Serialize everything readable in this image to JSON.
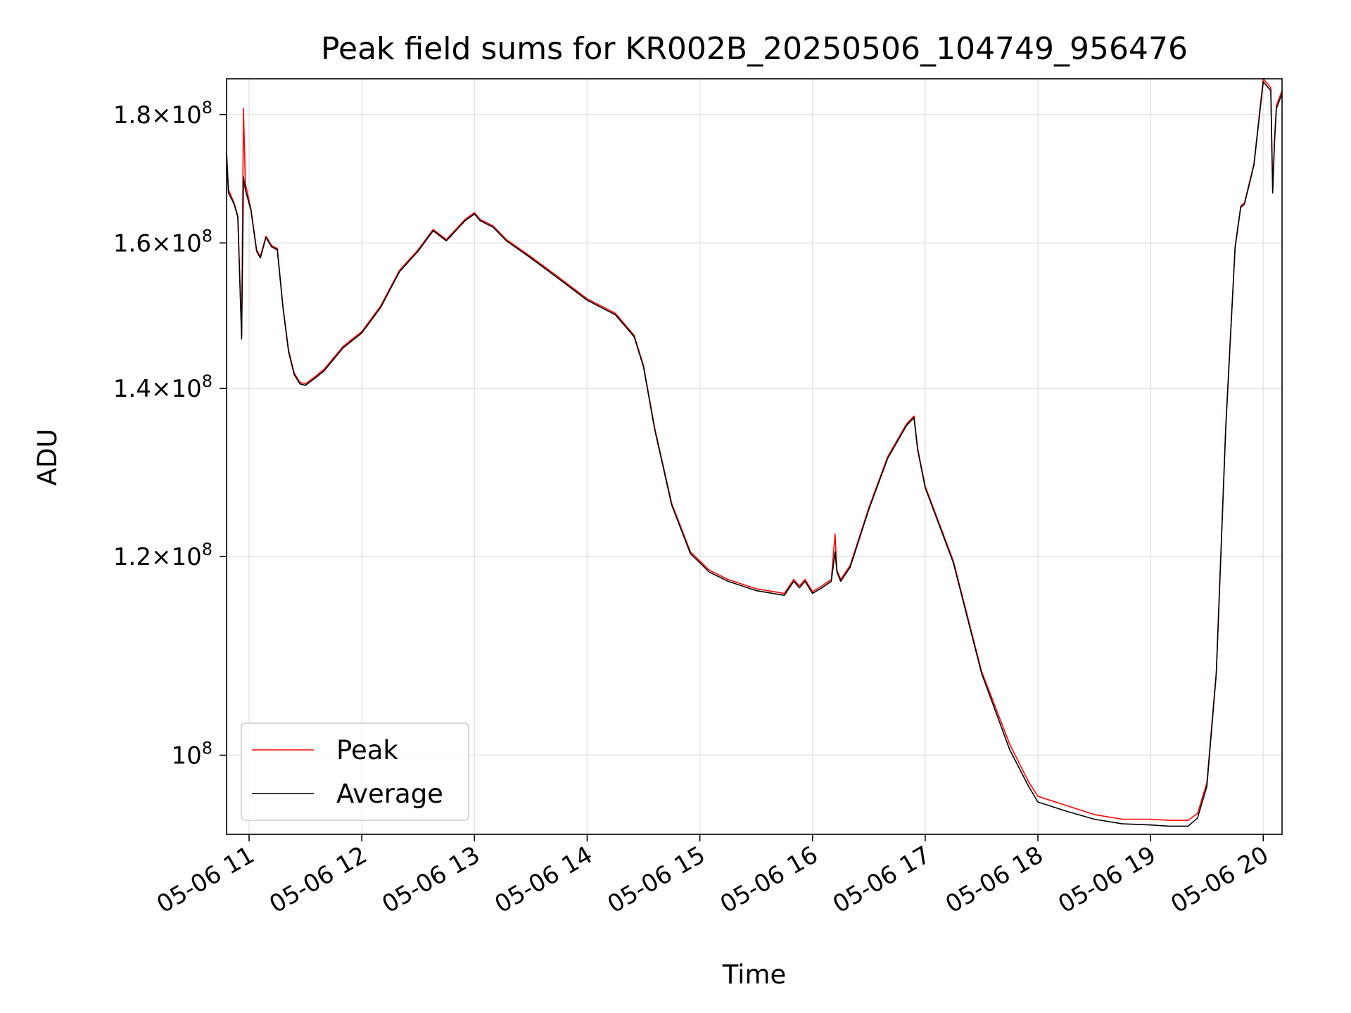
{
  "chart_data": {
    "type": "line",
    "title": "Peak field sums for KR002B_20250506_104749_956476",
    "xlabel": "Time",
    "ylabel": "ADU",
    "xlim": [
      "2025-05-06 10:48",
      "2025-05-06 20:10"
    ],
    "ylim": [
      93000000,
      186000000
    ],
    "yscale": "log",
    "grid": true,
    "legend_position": "lower-left",
    "x_ticks": [
      {
        "t": "2025-05-06 11:00",
        "label": "05-06 11"
      },
      {
        "t": "2025-05-06 12:00",
        "label": "05-06 12"
      },
      {
        "t": "2025-05-06 13:00",
        "label": "05-06 13"
      },
      {
        "t": "2025-05-06 14:00",
        "label": "05-06 14"
      },
      {
        "t": "2025-05-06 15:00",
        "label": "05-06 15"
      },
      {
        "t": "2025-05-06 16:00",
        "label": "05-06 16"
      },
      {
        "t": "2025-05-06 17:00",
        "label": "05-06 17"
      },
      {
        "t": "2025-05-06 18:00",
        "label": "05-06 18"
      },
      {
        "t": "2025-05-06 19:00",
        "label": "05-06 19"
      },
      {
        "t": "2025-05-06 20:00",
        "label": "05-06 20"
      }
    ],
    "y_ticks": [
      {
        "value": 100000000,
        "mantissa": "",
        "base": "10",
        "exp": "8"
      },
      {
        "value": 120000000,
        "mantissa": "1.2",
        "base": "10",
        "exp": "8"
      },
      {
        "value": 140000000,
        "mantissa": "1.4",
        "base": "10",
        "exp": "8"
      },
      {
        "value": 160000000,
        "mantissa": "1.6",
        "base": "10",
        "exp": "8"
      },
      {
        "value": 180000000,
        "mantissa": "1.8",
        "base": "10",
        "exp": "8"
      }
    ],
    "series": [
      {
        "name": "Peak",
        "color": "#ff0000",
        "x": [
          "2025-05-06 10:48",
          "2025-05-06 10:49",
          "2025-05-06 10:52",
          "2025-05-06 10:54",
          "2025-05-06 10:56",
          "2025-05-06 10:57",
          "2025-05-06 10:58",
          "2025-05-06 11:01",
          "2025-05-06 11:04",
          "2025-05-06 11:06",
          "2025-05-06 11:09",
          "2025-05-06 11:12",
          "2025-05-06 11:15",
          "2025-05-06 11:18",
          "2025-05-06 11:21",
          "2025-05-06 11:24",
          "2025-05-06 11:27",
          "2025-05-06 11:30",
          "2025-05-06 11:35",
          "2025-05-06 11:40",
          "2025-05-06 11:50",
          "2025-05-06 12:00",
          "2025-05-06 12:10",
          "2025-05-06 12:20",
          "2025-05-06 12:30",
          "2025-05-06 12:38",
          "2025-05-06 12:45",
          "2025-05-06 12:55",
          "2025-05-06 13:00",
          "2025-05-06 13:03",
          "2025-05-06 13:10",
          "2025-05-06 13:17",
          "2025-05-06 13:30",
          "2025-05-06 13:45",
          "2025-05-06 14:00",
          "2025-05-06 14:15",
          "2025-05-06 14:25",
          "2025-05-06 14:30",
          "2025-05-06 14:36",
          "2025-05-06 14:45",
          "2025-05-06 14:55",
          "2025-05-06 15:00",
          "2025-05-06 15:05",
          "2025-05-06 15:10",
          "2025-05-06 15:15",
          "2025-05-06 15:30",
          "2025-05-06 15:45",
          "2025-05-06 15:50",
          "2025-05-06 15:53",
          "2025-05-06 15:56",
          "2025-05-06 16:00",
          "2025-05-06 16:05",
          "2025-05-06 16:10",
          "2025-05-06 16:12",
          "2025-05-06 16:13",
          "2025-05-06 16:15",
          "2025-05-06 16:20",
          "2025-05-06 16:30",
          "2025-05-06 16:40",
          "2025-05-06 16:50",
          "2025-05-06 16:54",
          "2025-05-06 16:56",
          "2025-05-06 17:00",
          "2025-05-06 17:15",
          "2025-05-06 17:30",
          "2025-05-06 17:45",
          "2025-05-06 17:55",
          "2025-05-06 18:00",
          "2025-05-06 18:15",
          "2025-05-06 18:30",
          "2025-05-06 18:45",
          "2025-05-06 19:00",
          "2025-05-06 19:10",
          "2025-05-06 19:15",
          "2025-05-06 19:20",
          "2025-05-06 19:25",
          "2025-05-06 19:30",
          "2025-05-06 19:35",
          "2025-05-06 19:40",
          "2025-05-06 19:45",
          "2025-05-06 19:48",
          "2025-05-06 19:50",
          "2025-05-06 19:55",
          "2025-05-06 20:00",
          "2025-05-06 20:04",
          "2025-05-06 20:05",
          "2025-05-06 20:06",
          "2025-05-06 20:07",
          "2025-05-06 20:10"
        ],
        "y": [
          174000000,
          168000000,
          166000000,
          164000000,
          147000000,
          181000000,
          169000000,
          165000000,
          159000000,
          158000000,
          161000000,
          159600000,
          159200000,
          151000000,
          145000000,
          142000000,
          140800000,
          140600000,
          141500000,
          142500000,
          145500000,
          147500000,
          151000000,
          156000000,
          159000000,
          162000000,
          160500000,
          163500000,
          164500000,
          163500000,
          162500000,
          160500000,
          158000000,
          155000000,
          152000000,
          150000000,
          147000000,
          143000000,
          135000000,
          126000000,
          120500000,
          119500000,
          118500000,
          118000000,
          117500000,
          116500000,
          116000000,
          117500000,
          116800000,
          117500000,
          116200000,
          116800000,
          117500000,
          122500000,
          118500000,
          117500000,
          119000000,
          125500000,
          131500000,
          135500000,
          136500000,
          132500000,
          128000000,
          119500000,
          108000000,
          101000000,
          97600000,
          96300000,
          95500000,
          94700000,
          94300000,
          94300000,
          94200000,
          94200000,
          94200000,
          94800000,
          97500000,
          108000000,
          135000000,
          159500000,
          165500000,
          166000000,
          172000000,
          186000000,
          184500000,
          168000000,
          176000000,
          181500000,
          184000000
        ]
      },
      {
        "name": "Average",
        "color": "#000000",
        "x": [
          "2025-05-06 10:48",
          "2025-05-06 10:49",
          "2025-05-06 10:52",
          "2025-05-06 10:54",
          "2025-05-06 10:56",
          "2025-05-06 10:57",
          "2025-05-06 10:58",
          "2025-05-06 11:01",
          "2025-05-06 11:04",
          "2025-05-06 11:06",
          "2025-05-06 11:09",
          "2025-05-06 11:12",
          "2025-05-06 11:15",
          "2025-05-06 11:18",
          "2025-05-06 11:21",
          "2025-05-06 11:24",
          "2025-05-06 11:27",
          "2025-05-06 11:30",
          "2025-05-06 11:35",
          "2025-05-06 11:40",
          "2025-05-06 11:50",
          "2025-05-06 12:00",
          "2025-05-06 12:10",
          "2025-05-06 12:20",
          "2025-05-06 12:30",
          "2025-05-06 12:38",
          "2025-05-06 12:45",
          "2025-05-06 12:55",
          "2025-05-06 13:00",
          "2025-05-06 13:03",
          "2025-05-06 13:10",
          "2025-05-06 13:17",
          "2025-05-06 13:30",
          "2025-05-06 13:45",
          "2025-05-06 14:00",
          "2025-05-06 14:15",
          "2025-05-06 14:25",
          "2025-05-06 14:30",
          "2025-05-06 14:36",
          "2025-05-06 14:45",
          "2025-05-06 14:55",
          "2025-05-06 15:00",
          "2025-05-06 15:05",
          "2025-05-06 15:10",
          "2025-05-06 15:15",
          "2025-05-06 15:30",
          "2025-05-06 15:45",
          "2025-05-06 15:50",
          "2025-05-06 15:53",
          "2025-05-06 15:56",
          "2025-05-06 16:00",
          "2025-05-06 16:05",
          "2025-05-06 16:10",
          "2025-05-06 16:12",
          "2025-05-06 16:13",
          "2025-05-06 16:15",
          "2025-05-06 16:20",
          "2025-05-06 16:30",
          "2025-05-06 16:40",
          "2025-05-06 16:50",
          "2025-05-06 16:54",
          "2025-05-06 16:56",
          "2025-05-06 17:00",
          "2025-05-06 17:15",
          "2025-05-06 17:30",
          "2025-05-06 17:45",
          "2025-05-06 17:55",
          "2025-05-06 18:00",
          "2025-05-06 18:15",
          "2025-05-06 18:30",
          "2025-05-06 18:45",
          "2025-05-06 19:00",
          "2025-05-06 19:10",
          "2025-05-06 19:15",
          "2025-05-06 19:20",
          "2025-05-06 19:25",
          "2025-05-06 19:30",
          "2025-05-06 19:35",
          "2025-05-06 19:40",
          "2025-05-06 19:45",
          "2025-05-06 19:48",
          "2025-05-06 19:50",
          "2025-05-06 19:55",
          "2025-05-06 20:00",
          "2025-05-06 20:04",
          "2025-05-06 20:05",
          "2025-05-06 20:06",
          "2025-05-06 20:07",
          "2025-05-06 20:10"
        ],
        "y": [
          173500000,
          167500000,
          165800000,
          163800000,
          146500000,
          170000000,
          168000000,
          164800000,
          158800000,
          157800000,
          160800000,
          159400000,
          159000000,
          150800000,
          144800000,
          141800000,
          140600000,
          140400000,
          141300000,
          142300000,
          145300000,
          147300000,
          150800000,
          155800000,
          158800000,
          161800000,
          160300000,
          163300000,
          164300000,
          163300000,
          162300000,
          160300000,
          157800000,
          154800000,
          151800000,
          149800000,
          146800000,
          142800000,
          134800000,
          125800000,
          120300000,
          119300000,
          118300000,
          117800000,
          117300000,
          116300000,
          115800000,
          117300000,
          116600000,
          117300000,
          116000000,
          116600000,
          117300000,
          120500000,
          118300000,
          117300000,
          118800000,
          125300000,
          131300000,
          135300000,
          136300000,
          132300000,
          127800000,
          119300000,
          107800000,
          100500000,
          97200000,
          95800000,
          95000000,
          94300000,
          93900000,
          93800000,
          93700000,
          93700000,
          93700000,
          94400000,
          97200000,
          107800000,
          134800000,
          159300000,
          165300000,
          165800000,
          171800000,
          185500000,
          184000000,
          167500000,
          175500000,
          181000000,
          183500000
        ]
      }
    ]
  }
}
